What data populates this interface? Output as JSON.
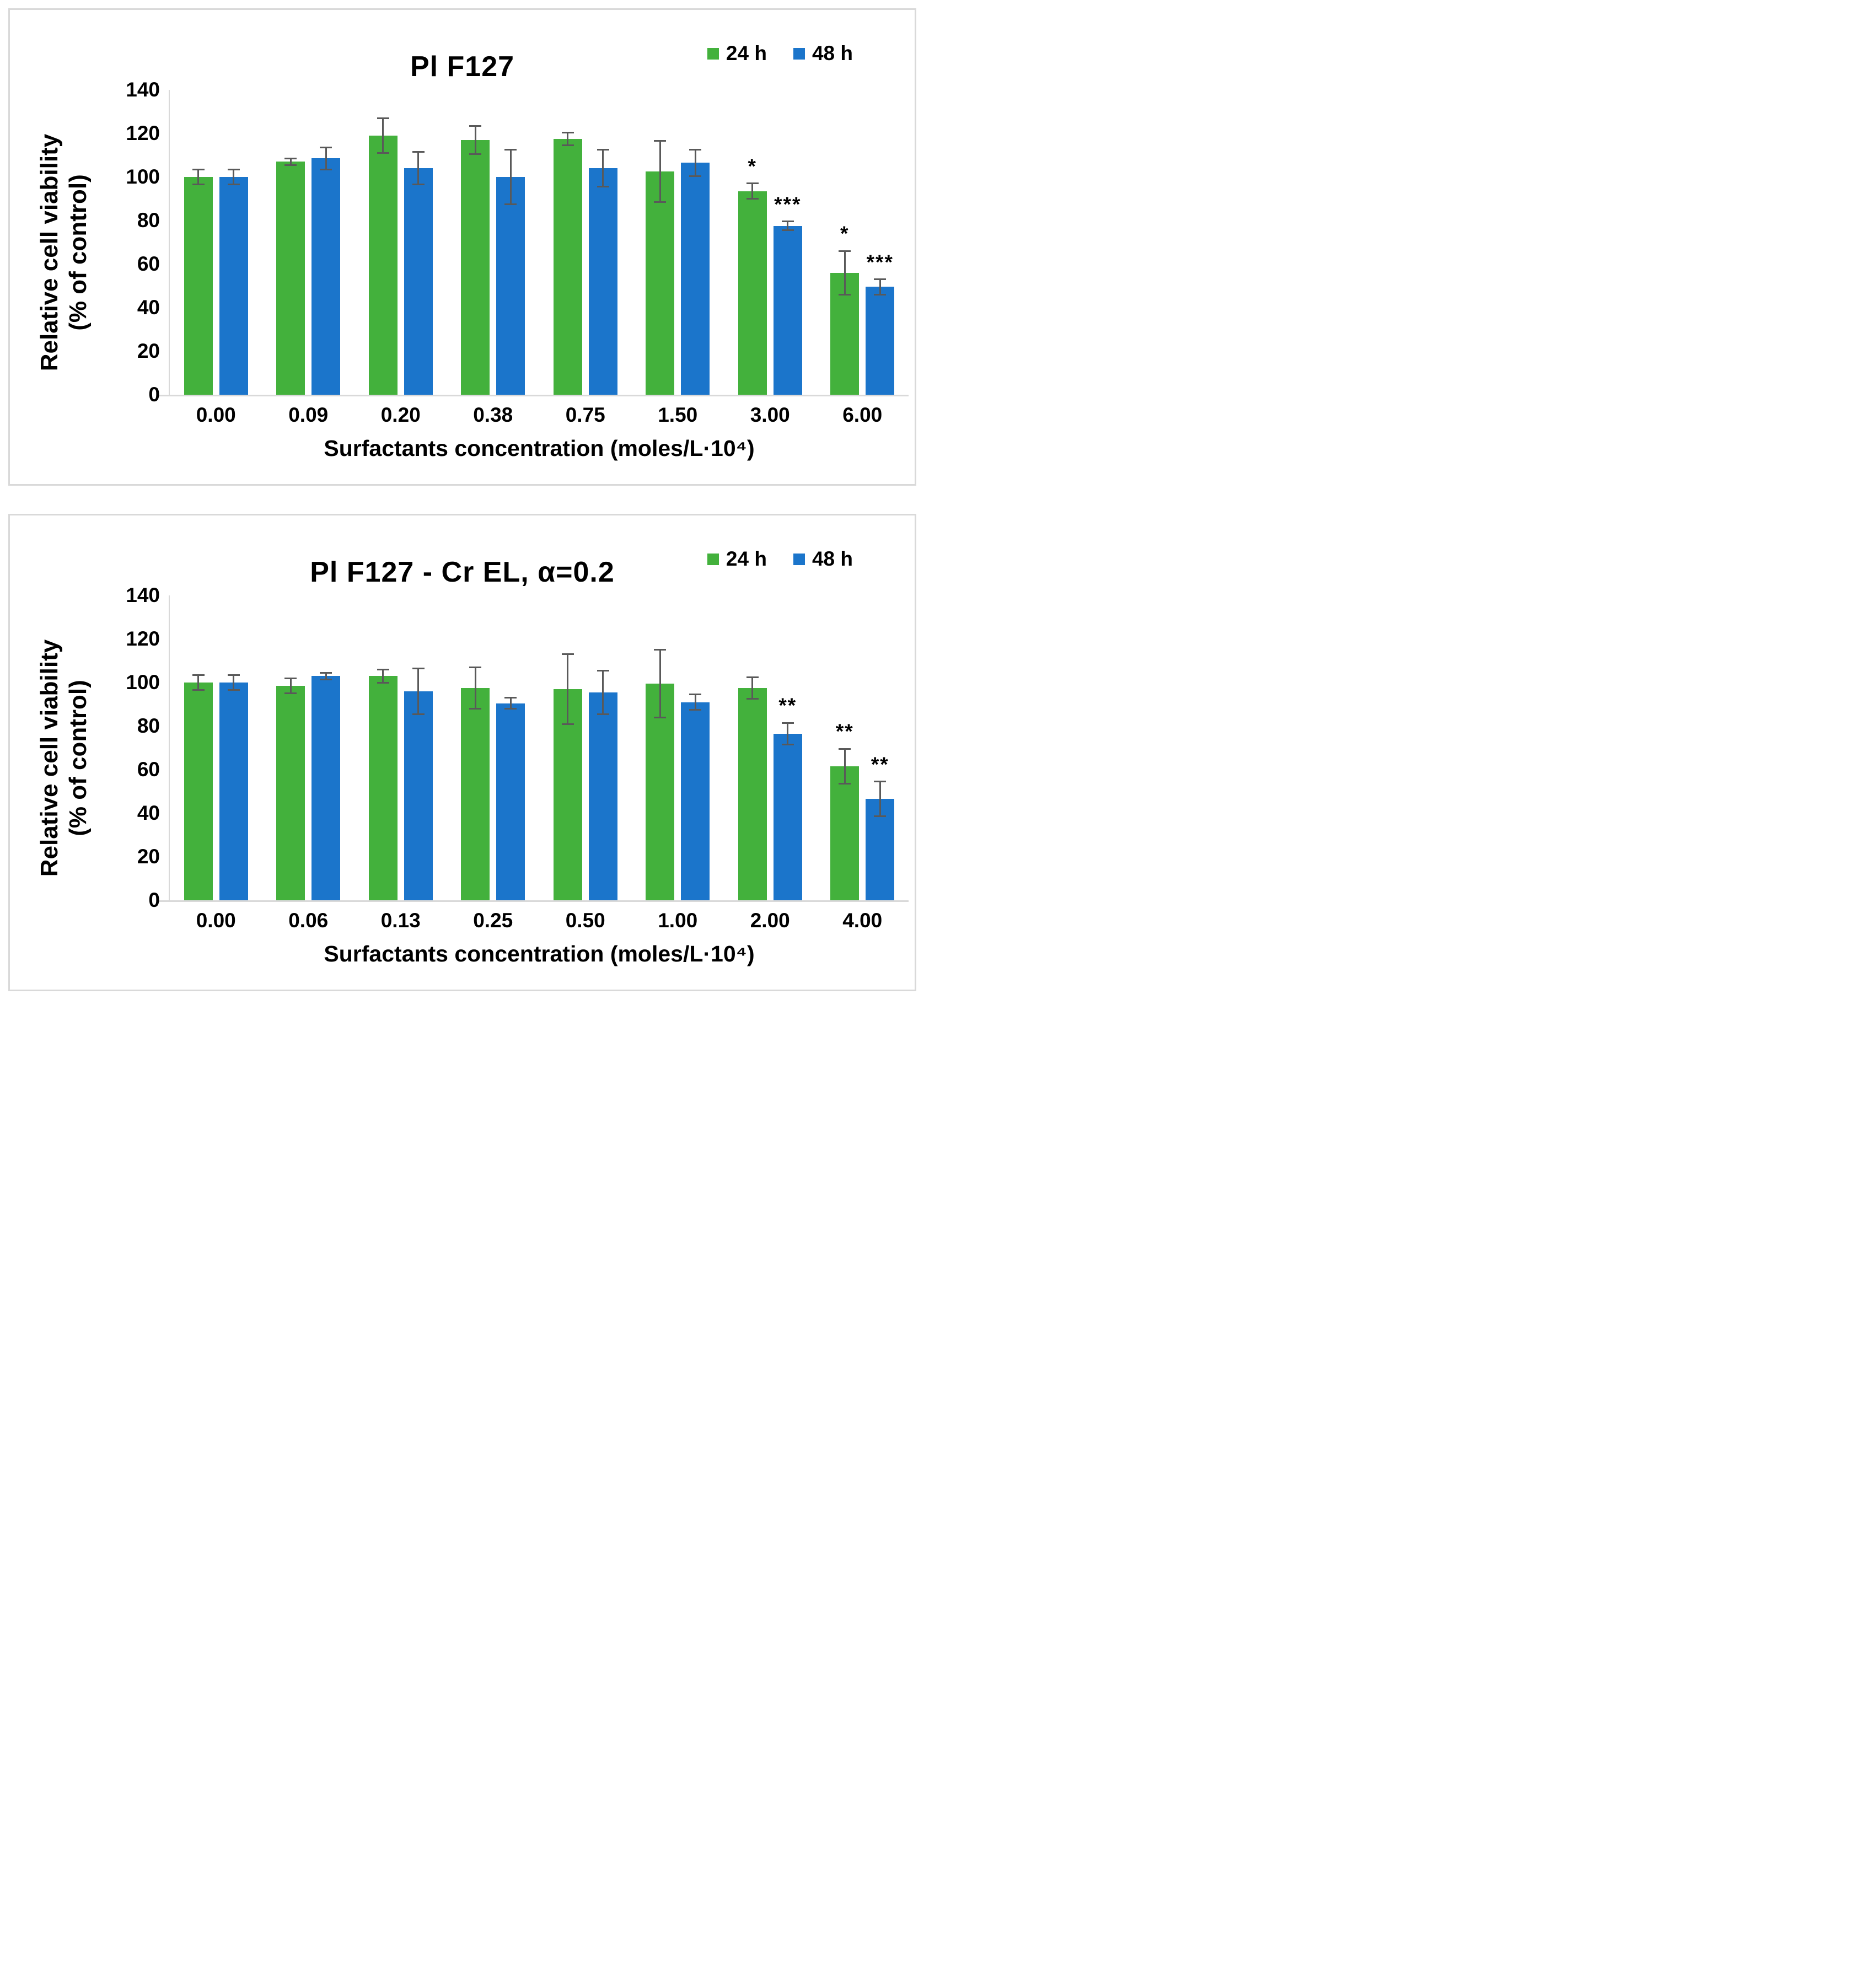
{
  "figure": {
    "background": "#ffffff",
    "panel_border_color": "#d9d9d9",
    "axis_color": "#d9d9d9",
    "error_bar_color": "#595959",
    "series_colors": {
      "green_24h": "#43B13C",
      "blue_48h": "#1B75CB"
    }
  },
  "chart_data": [
    {
      "type": "bar",
      "title": "Pl F127",
      "ylabel_line1": "Relative cell viability",
      "ylabel_line2": "(% of control)",
      "xlabel": "Surfactants concentration (moles/L·10⁴)",
      "ylim": [
        0,
        140
      ],
      "yticks": [
        0,
        20,
        40,
        60,
        80,
        100,
        120,
        140
      ],
      "grid": false,
      "legend_position": "top-right",
      "categories": [
        "0.00",
        "0.09",
        "0.20",
        "0.38",
        "0.75",
        "1.50",
        "3.00",
        "6.00"
      ],
      "series": [
        {
          "name": "24 h",
          "color": "#43B13C",
          "values": [
            100,
            107,
            119,
            117,
            117.5,
            102.5,
            93.5,
            56
          ],
          "errors": [
            3.5,
            1.5,
            8,
            6.5,
            3,
            14,
            3.5,
            10
          ],
          "annotations": [
            "",
            "",
            "",
            "",
            "",
            "",
            "*",
            "*"
          ]
        },
        {
          "name": "48 h",
          "color": "#1B75CB",
          "values": [
            100,
            108.5,
            104,
            100,
            104,
            106.5,
            77.5,
            49.5
          ],
          "errors": [
            3.5,
            5,
            7.5,
            12.5,
            8.5,
            6,
            2,
            3.5
          ],
          "annotations": [
            "",
            "",
            "",
            "",
            "",
            "",
            "***",
            "***"
          ]
        }
      ]
    },
    {
      "type": "bar",
      "title": "Pl F127 - Cr EL, α=0.2",
      "ylabel_line1": "Relative cell viability",
      "ylabel_line2": "(% of control)",
      "xlabel": "Surfactants concentration (moles/L·10⁴)",
      "ylim": [
        0,
        140
      ],
      "yticks": [
        0,
        20,
        40,
        60,
        80,
        100,
        120,
        140
      ],
      "grid": false,
      "legend_position": "top-right",
      "categories": [
        "0.00",
        "0.06",
        "0.13",
        "0.25",
        "0.50",
        "1.00",
        "2.00",
        "4.00"
      ],
      "series": [
        {
          "name": "24 h",
          "color": "#43B13C",
          "values": [
            100,
            98.5,
            103,
            97.5,
            97,
            99.5,
            97.5,
            61.5
          ],
          "errors": [
            3.5,
            3.5,
            3,
            9.5,
            16,
            15.5,
            5,
            8
          ],
          "annotations": [
            "",
            "",
            "",
            "",
            "",
            "",
            "",
            "**"
          ]
        },
        {
          "name": "48 h",
          "color": "#1B75CB",
          "values": [
            100,
            103,
            96,
            90.5,
            95.5,
            91,
            76.5,
            46.5
          ],
          "errors": [
            3.5,
            1.5,
            10.5,
            2.5,
            10,
            3.5,
            5,
            8
          ],
          "annotations": [
            "",
            "",
            "",
            "",
            "",
            "",
            "**",
            "**"
          ]
        }
      ]
    }
  ]
}
